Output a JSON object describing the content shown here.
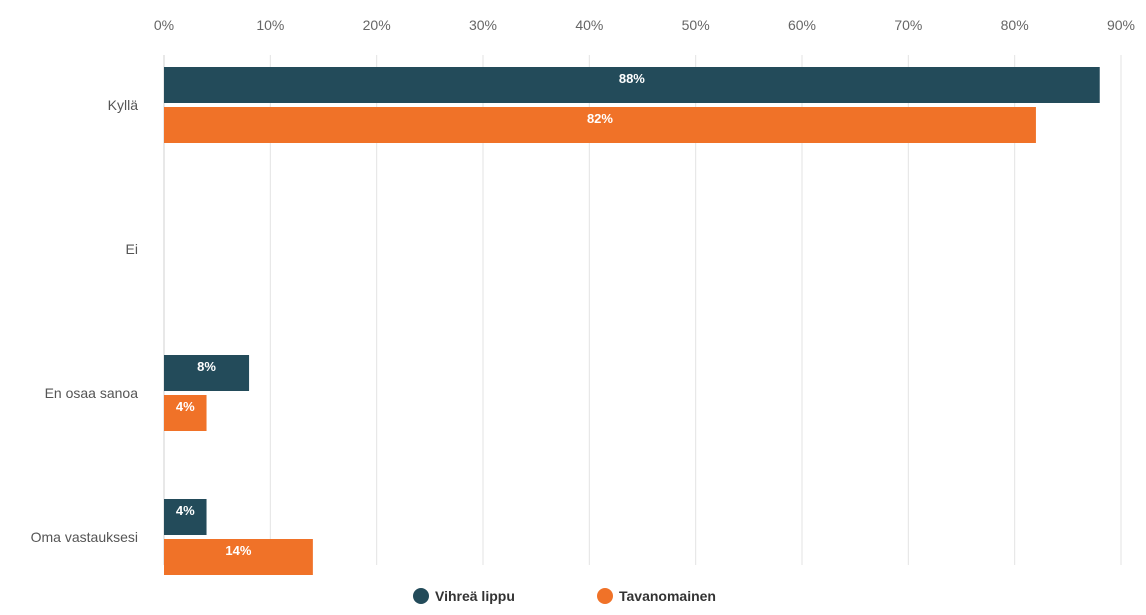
{
  "chart_data": {
    "type": "bar",
    "orientation": "horizontal",
    "categories": [
      "Kyllä",
      "Ei",
      "En osaa sanoa",
      "Oma vastauksesi"
    ],
    "series": [
      {
        "name": "Vihreä lippu",
        "color": "#234b5a",
        "values": [
          88,
          0,
          8,
          4
        ],
        "labels": [
          "88%",
          "",
          "8%",
          "4%"
        ]
      },
      {
        "name": "Tavanomainen",
        "color": "#f07228",
        "values": [
          82,
          0,
          4,
          14
        ],
        "labels": [
          "82%",
          "",
          "4%",
          "14%"
        ]
      }
    ],
    "x_ticks": [
      "0%",
      "10%",
      "20%",
      "30%",
      "40%",
      "50%",
      "60%",
      "70%",
      "80%",
      "90%"
    ],
    "xlim": [
      0,
      90
    ],
    "x_unit": "%",
    "grid": true,
    "legend_position": "bottom-center"
  }
}
